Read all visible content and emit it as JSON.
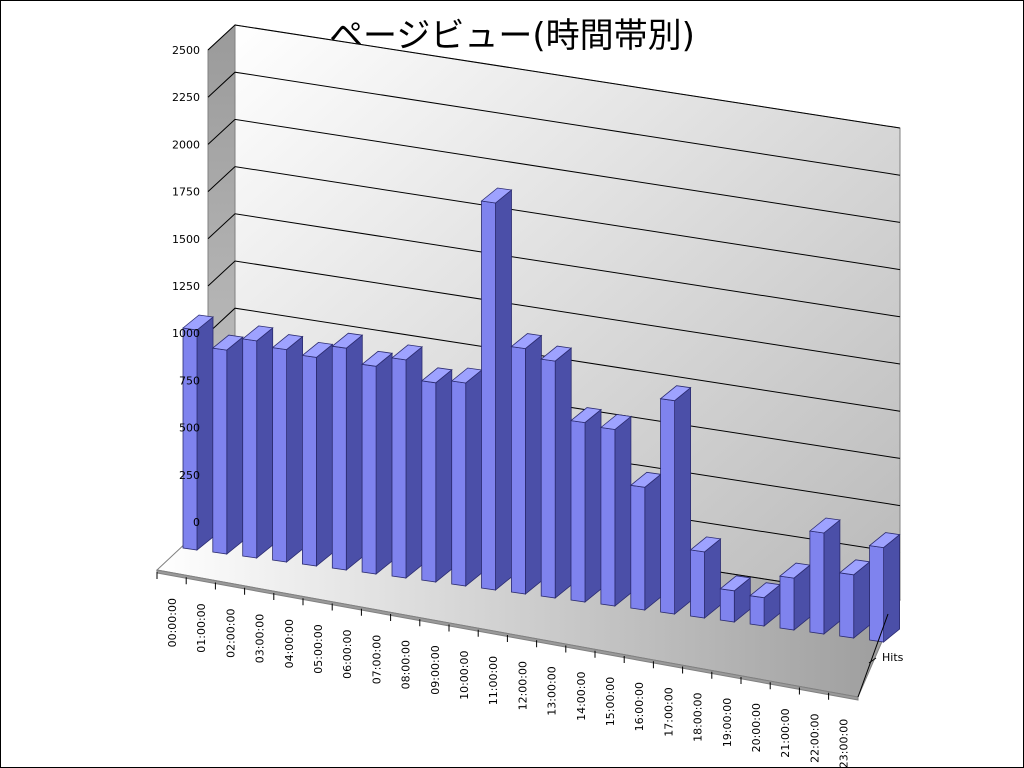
{
  "chart_data": {
    "type": "bar",
    "title": "ページビュー(時間帯別)",
    "categories": [
      "00:00:00",
      "01:00:00",
      "02:00:00",
      "03:00:00",
      "04:00:00",
      "05:00:00",
      "06:00:00",
      "07:00:00",
      "08:00:00",
      "09:00:00",
      "10:00:00",
      "11:00:00",
      "12:00:00",
      "13:00:00",
      "14:00:00",
      "15:00:00",
      "16:00:00",
      "17:00:00",
      "18:00:00",
      "19:00:00",
      "20:00:00",
      "21:00:00",
      "22:00:00",
      "23:00:00"
    ],
    "series": [
      {
        "name": "Hits",
        "values": [
          1165,
          1080,
          1150,
          1125,
          1105,
          1175,
          1100,
          1155,
          1055,
          1075,
          2050,
          1300,
          1255,
          950,
          935,
          650,
          1130,
          350,
          165,
          150,
          275,
          535,
          335,
          500
        ],
        "color": "#6f73dd"
      }
    ],
    "yticks": [
      0,
      250,
      500,
      750,
      1000,
      1250,
      1500,
      1750,
      2000,
      2250,
      2500
    ],
    "ylim": [
      0,
      2500
    ],
    "depth_label": "Hits",
    "grid": true,
    "style": "3d-column"
  }
}
